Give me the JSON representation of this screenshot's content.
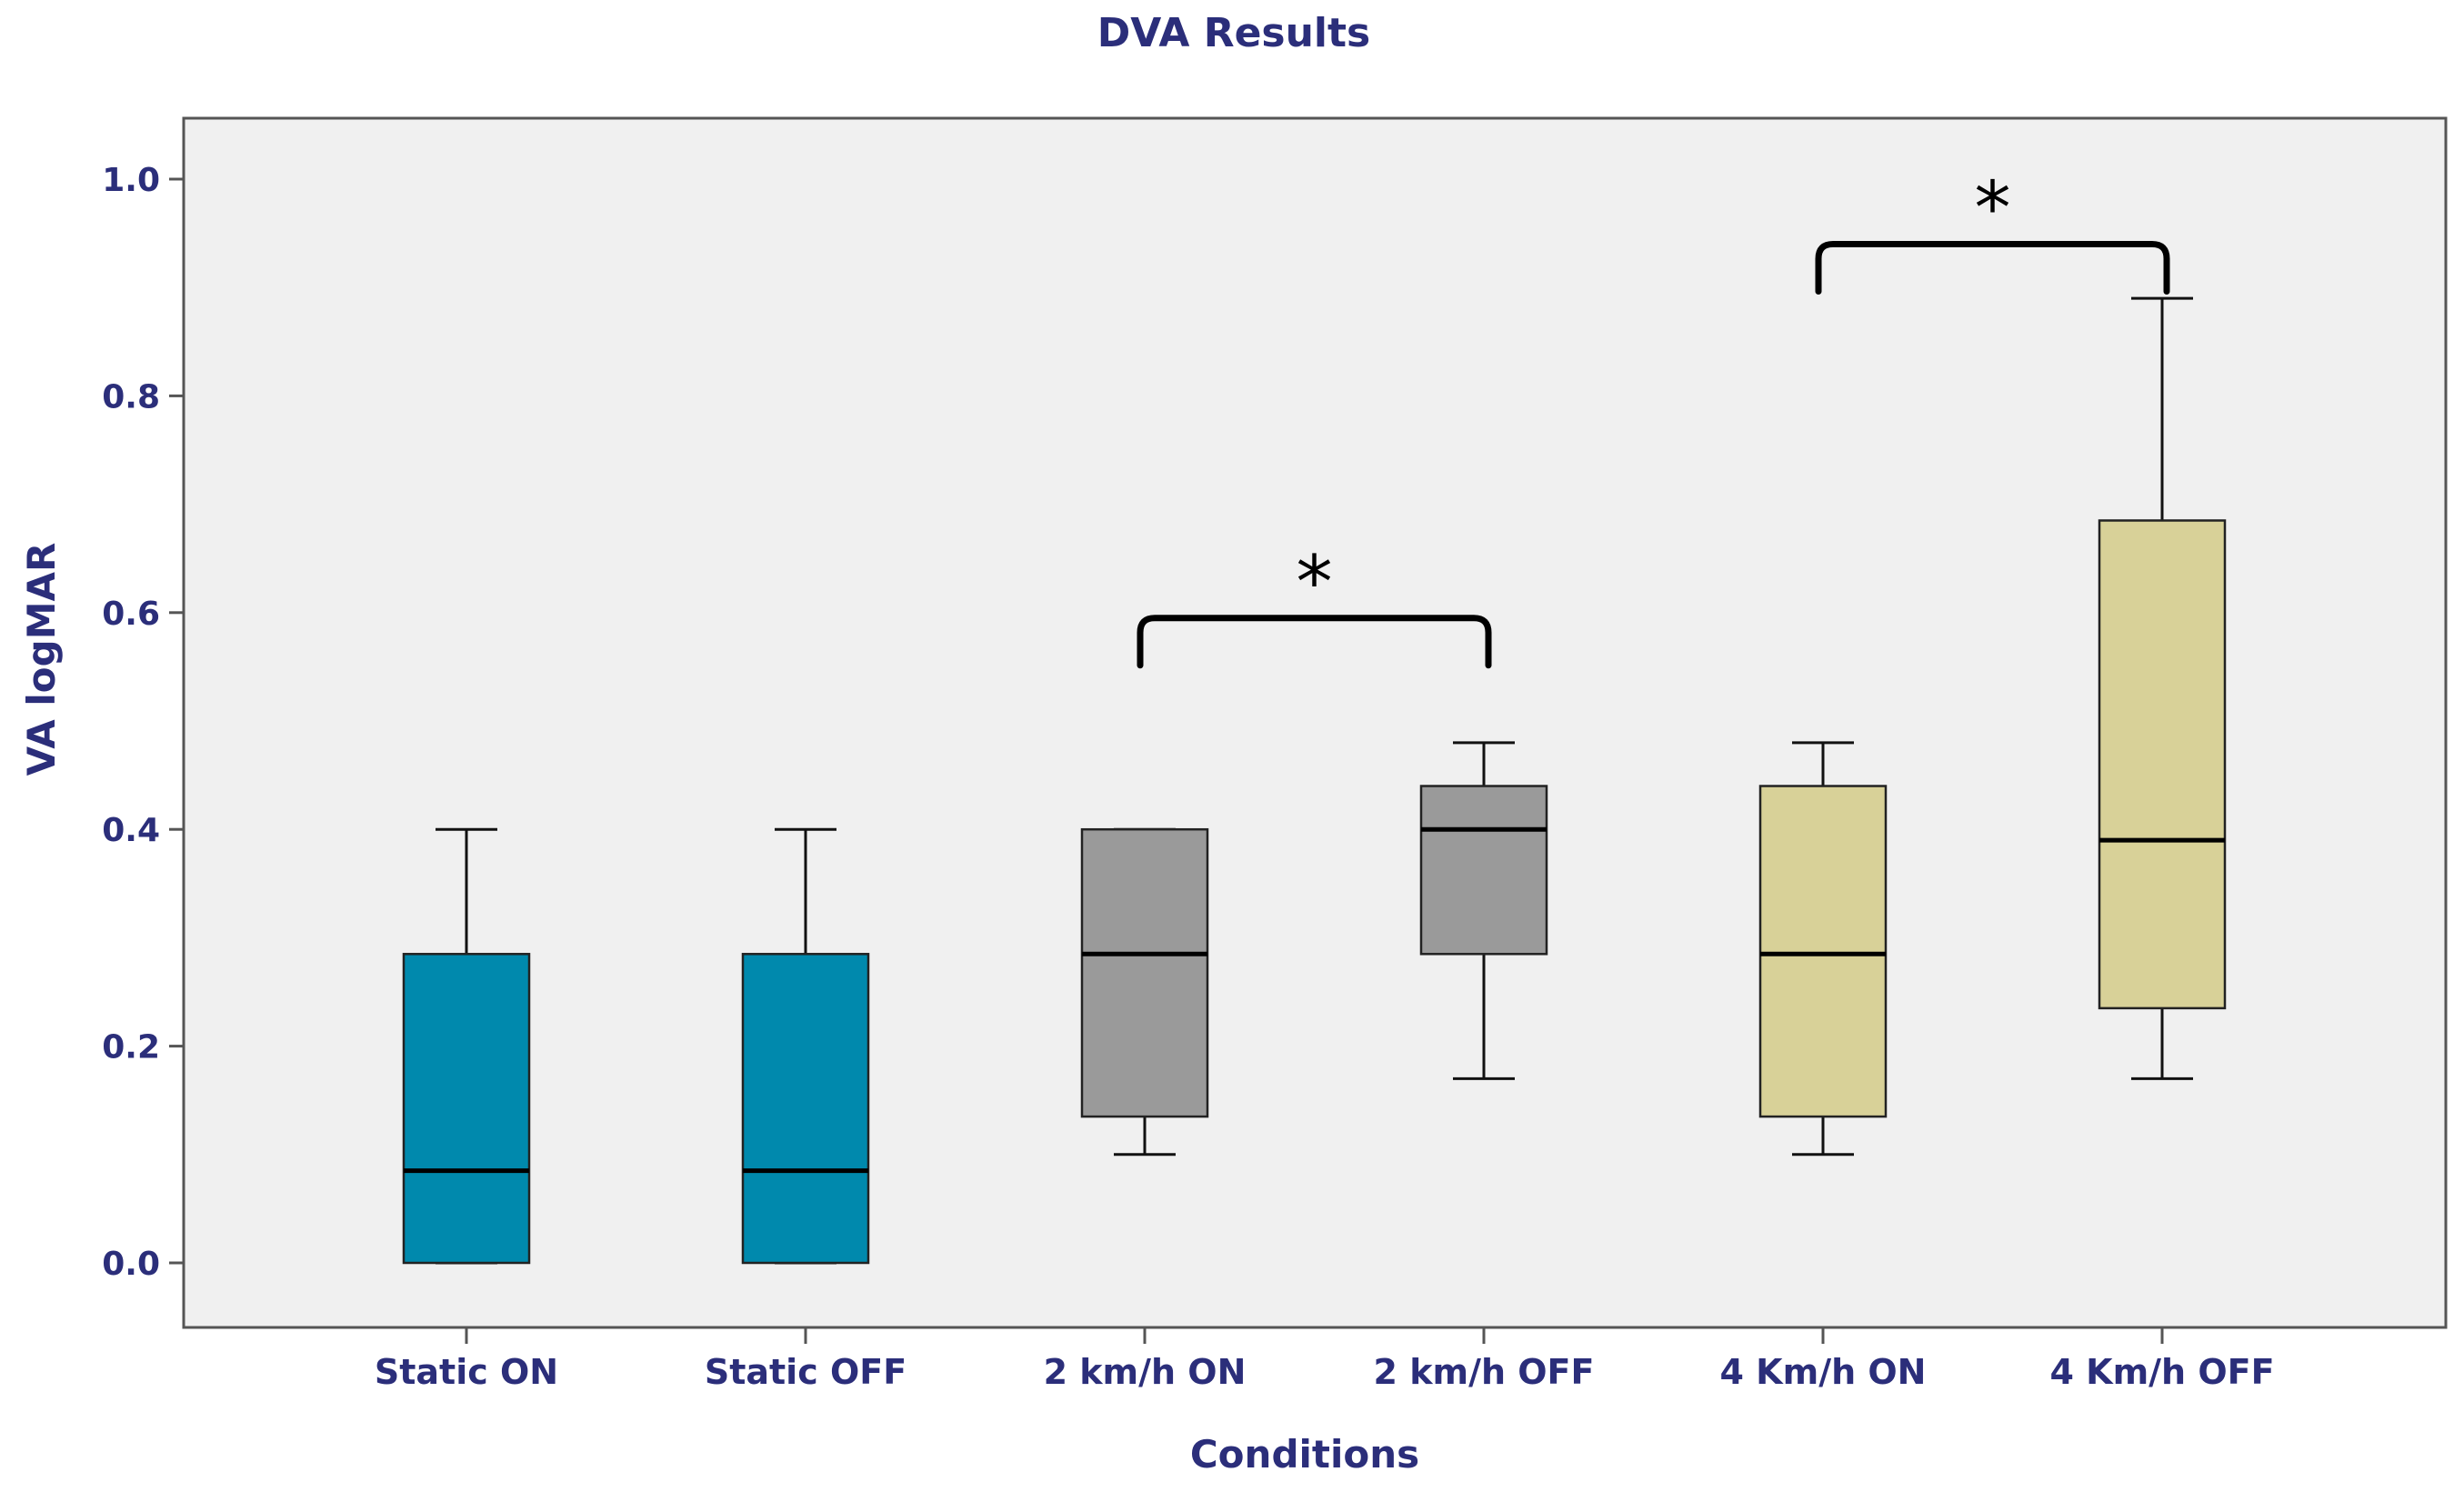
{
  "chart_data": {
    "type": "boxplot",
    "title": "DVA Results",
    "xlabel": "Conditions",
    "ylabel": "VA logMAR",
    "ylim": [
      -0.055,
      1.11
    ],
    "yticks": [
      "0.0",
      "0.2",
      "0.4",
      "0.6",
      "0.8",
      "1.0"
    ],
    "grid": false,
    "categories": [
      "Static ON",
      "Static OFF",
      "2 km/h ON",
      "2 km/h OFF",
      "4 Km/h ON",
      "4 Km/h OFF"
    ],
    "boxes": [
      {
        "min": 0.0,
        "q1": 0.0,
        "median": 0.085,
        "q3": 0.285,
        "max": 0.4,
        "color": "#0089ad"
      },
      {
        "min": 0.0,
        "q1": 0.0,
        "median": 0.085,
        "q3": 0.285,
        "max": 0.4,
        "color": "#0089ad"
      },
      {
        "min": 0.1,
        "q1": 0.135,
        "median": 0.285,
        "q3": 0.4,
        "max": 0.4,
        "color": "#9a9a9a"
      },
      {
        "min": 0.17,
        "q1": 0.285,
        "median": 0.4,
        "q3": 0.44,
        "max": 0.48,
        "color": "#9a9a9a"
      },
      {
        "min": 0.1,
        "q1": 0.135,
        "median": 0.285,
        "q3": 0.44,
        "max": 0.48,
        "color": "#d8d198"
      },
      {
        "min": 0.17,
        "q1": 0.235,
        "median": 0.39,
        "q3": 0.685,
        "max": 0.89,
        "color": "#d8d198"
      }
    ],
    "annotations": [
      {
        "from": 2,
        "to": 3,
        "y": 0.595,
        "label": "*"
      },
      {
        "from": 4,
        "to": 5,
        "y": 0.94,
        "label": "*"
      }
    ],
    "colors": {
      "axis": "#2b2e7a",
      "plot_background": "#f0f0f0"
    }
  }
}
